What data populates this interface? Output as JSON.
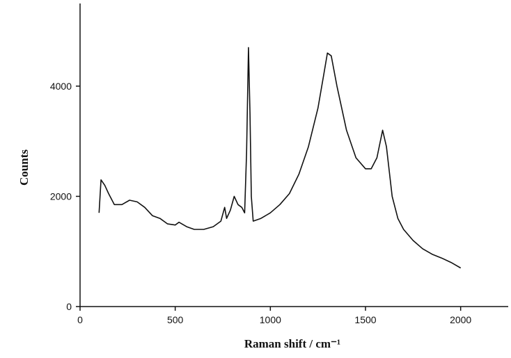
{
  "chart_data": {
    "type": "line",
    "xlabel": "Raman shift / cm⁻¹",
    "ylabel": "Counts",
    "x": [
      100,
      110,
      130,
      150,
      180,
      220,
      260,
      300,
      340,
      380,
      420,
      460,
      500,
      520,
      560,
      600,
      650,
      700,
      740,
      760,
      770,
      790,
      810,
      830,
      850,
      865,
      875,
      885,
      893,
      900,
      910,
      950,
      1000,
      1050,
      1100,
      1150,
      1200,
      1250,
      1280,
      1300,
      1320,
      1350,
      1400,
      1450,
      1500,
      1530,
      1560,
      1590,
      1610,
      1640,
      1670,
      1700,
      1750,
      1800,
      1850,
      1900,
      1950,
      2000
    ],
    "values": [
      1700,
      2300,
      2200,
      2050,
      1850,
      1850,
      1930,
      1900,
      1800,
      1650,
      1600,
      1500,
      1480,
      1530,
      1450,
      1400,
      1400,
      1450,
      1550,
      1800,
      1600,
      1750,
      2000,
      1850,
      1800,
      1700,
      2800,
      4700,
      3500,
      2000,
      1550,
      1600,
      1700,
      1850,
      2050,
      2400,
      2900,
      3600,
      4200,
      4600,
      4550,
      4000,
      3200,
      2700,
      2500,
      2500,
      2700,
      3200,
      2900,
      2000,
      1600,
      1400,
      1200,
      1050,
      950,
      880,
      800,
      700
    ],
    "color": "#111111",
    "xlim": [
      0,
      2250
    ],
    "ylim": [
      0,
      5500
    ],
    "xticks": [
      0,
      500,
      1000,
      1500,
      2000
    ],
    "yticks": [
      0,
      2000,
      4000
    ]
  }
}
